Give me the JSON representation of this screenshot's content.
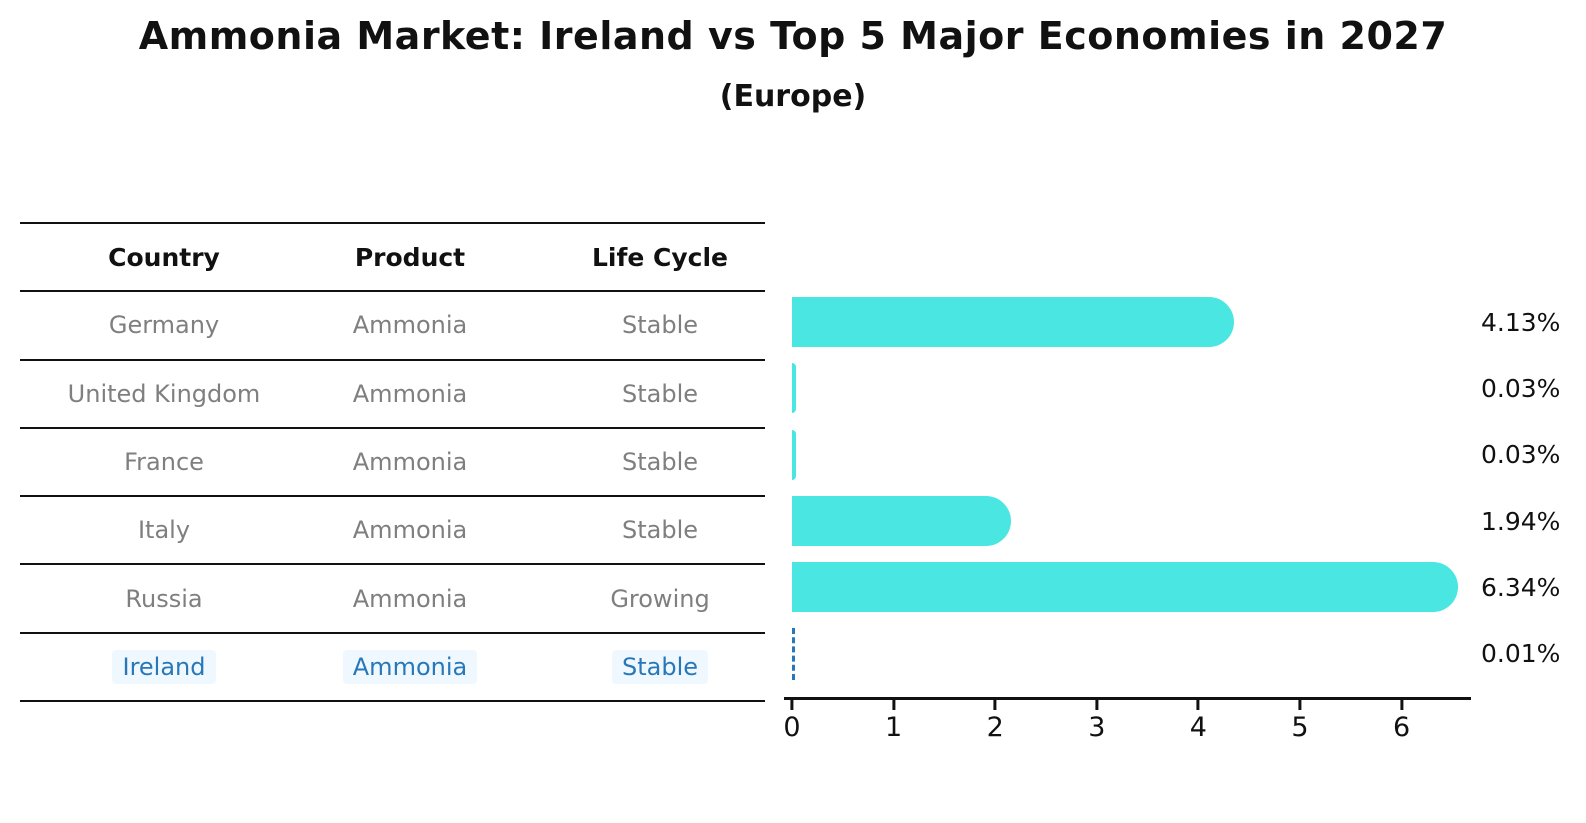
{
  "title": "Ammonia Market: Ireland vs Top 5 Major Economies in 2027",
  "subtitle": "(Europe)",
  "colors": {
    "bar": "#4AE6E1",
    "highlight_blue": "#2878B9",
    "highlight_bg": "#F0F8FF",
    "row_text": "#7F7F7F",
    "line": "#111111"
  },
  "table": {
    "headers": [
      "Country",
      "Product",
      "Life Cycle"
    ],
    "rows": [
      {
        "country": "Germany",
        "product": "Ammonia",
        "life_cycle": "Stable",
        "highlighted": false
      },
      {
        "country": "United Kingdom",
        "product": "Ammonia",
        "life_cycle": "Stable",
        "highlighted": false
      },
      {
        "country": "France",
        "product": "Ammonia",
        "life_cycle": "Stable",
        "highlighted": false
      },
      {
        "country": "Italy",
        "product": "Ammonia",
        "life_cycle": "Stable",
        "highlighted": false
      },
      {
        "country": "Russia",
        "product": "Ammonia",
        "life_cycle": "Growing",
        "highlighted": false
      },
      {
        "country": "Ireland",
        "product": "Ammonia",
        "life_cycle": "Stable",
        "highlighted": true
      }
    ]
  },
  "chart_data": {
    "type": "bar",
    "orientation": "horizontal",
    "title": "Ammonia Market: Ireland vs Top 5 Major Economies in 2027",
    "subtitle": "(Europe)",
    "categories": [
      "Germany",
      "United Kingdom",
      "France",
      "Italy",
      "Russia",
      "Ireland"
    ],
    "values": [
      4.13,
      0.03,
      0.03,
      1.94,
      6.34,
      0.01
    ],
    "value_labels": [
      "4.13%",
      "0.03%",
      "0.03%",
      "1.94%",
      "6.34%",
      "0.01%"
    ],
    "xlabel": "",
    "ylabel": "",
    "xlim": [
      0,
      6.68
    ],
    "xticks": [
      0,
      1,
      2,
      3,
      4,
      5,
      6
    ],
    "grid": false,
    "legend": "none",
    "bar_color": "#4AE6E1",
    "ireland_marker": "dashed blue line at zero"
  }
}
